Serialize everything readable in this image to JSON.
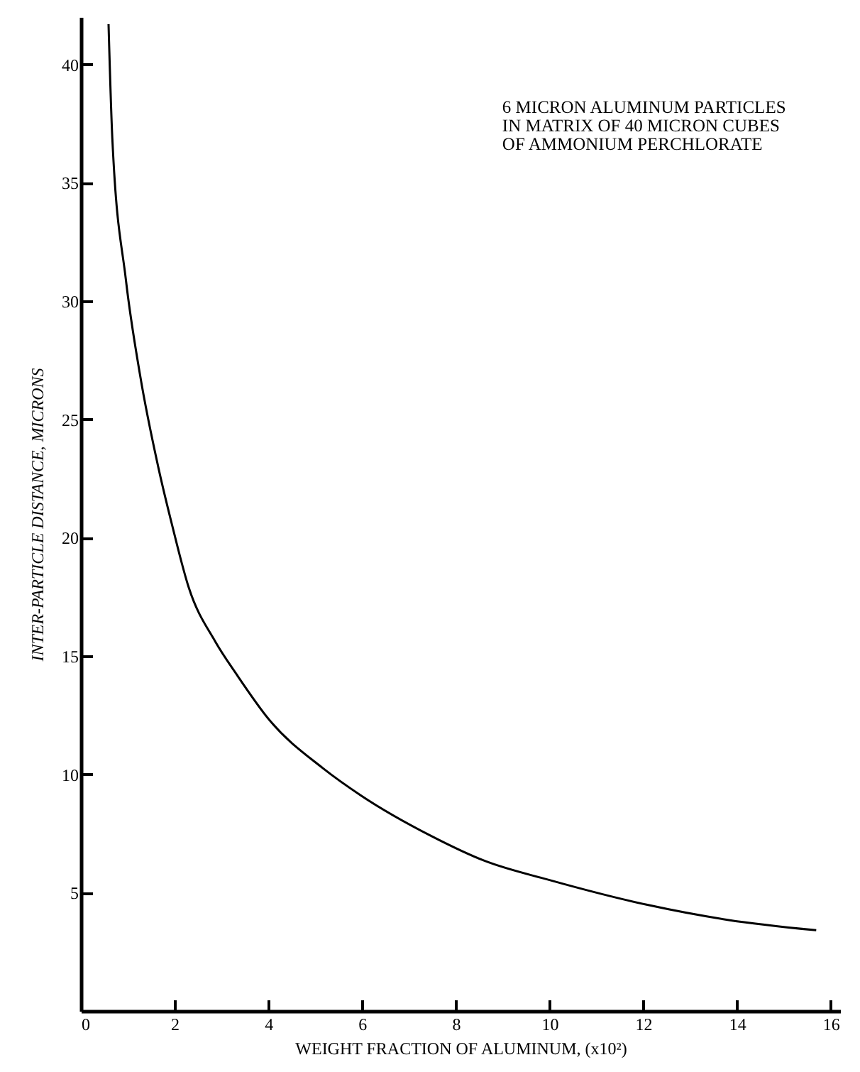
{
  "chart_data": {
    "type": "line",
    "xlabel": "WEIGHT FRACTION OF ALUMINUM, (x10²)",
    "ylabel": "INTER-PARTICLE DISTANCE, MICRONS",
    "annotations": [
      "6 MICRON ALUMINUM PARTICLES",
      "IN MATRIX OF 40 MICRON CUBES",
      "OF AMMONIUM PERCHLORATE"
    ],
    "x": [
      0.59,
      0.67,
      0.96,
      1.26,
      1.66,
      1.95,
      2.3,
      2.87,
      3.33,
      4.02,
      5.17,
      5.98,
      7.47,
      8.62,
      10.0,
      12.07,
      13.8,
      15.69
    ],
    "series": [
      {
        "color": "#000000",
        "values": [
          41.7,
          36.9,
          30.9,
          26.9,
          22.9,
          20.5,
          17.9,
          15.6,
          14.2,
          12.3,
          10.25,
          9.1,
          7.4,
          6.34,
          5.53,
          4.49,
          3.85,
          3.41
        ]
      }
    ],
    "xlim": [
      0,
      16.2
    ],
    "ylim": [
      0,
      42
    ],
    "xticks": [
      0,
      2,
      4,
      6,
      8,
      10,
      12,
      14,
      16
    ],
    "yticks": [
      5,
      10,
      15,
      20,
      25,
      30,
      35,
      40
    ],
    "grid": false,
    "marker": "none",
    "line_style": "solid"
  }
}
